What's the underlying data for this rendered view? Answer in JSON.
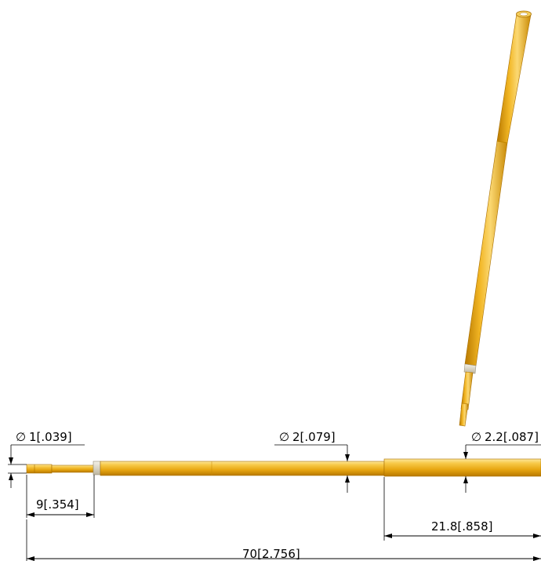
{
  "colors": {
    "gold_light": "#f7c948",
    "gold_mid": "#e8a712",
    "gold_dark": "#b87900",
    "ring": "#d9d4c4",
    "ink": "#000000"
  },
  "dimensions": {
    "dia_tip": {
      "symbol": "∅",
      "value": "1[.039]"
    },
    "dia_plunger": {
      "symbol": "∅",
      "value": "2[.079]"
    },
    "dia_barrel": {
      "symbol": "∅",
      "value": "2.2[.087]"
    },
    "len_tip": "9[.354]",
    "len_barrel": "21.8[.858]",
    "len_overall": "70[2.756]"
  }
}
